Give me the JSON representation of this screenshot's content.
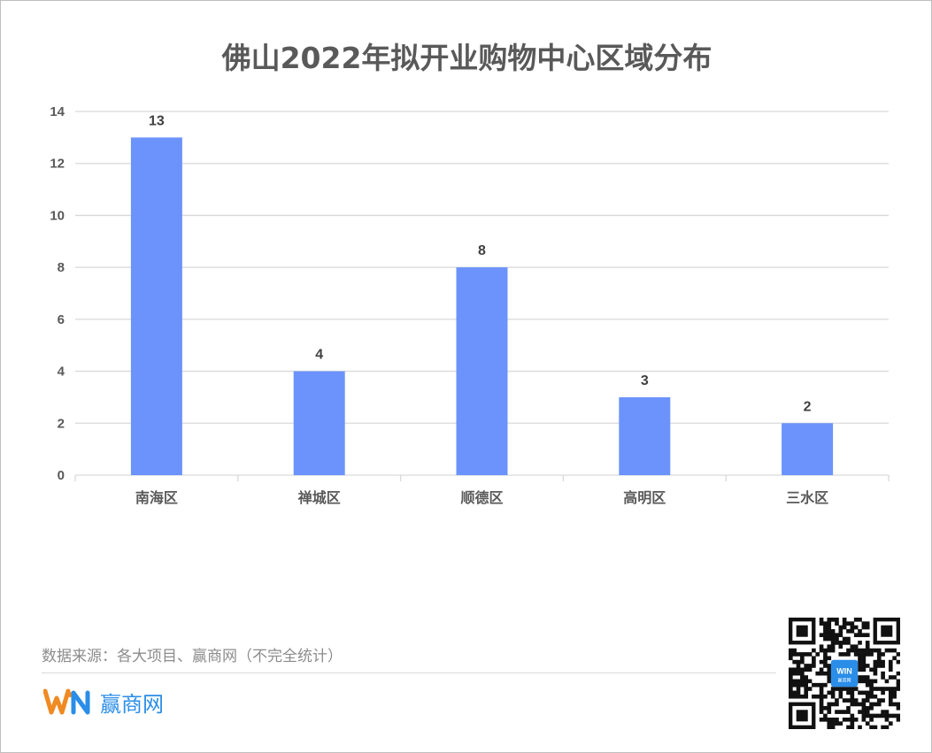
{
  "title": "佛山2022年拟开业购物中心区域分布",
  "source": "数据来源：各大项目、赢商网（不完全统计）",
  "brand": {
    "name": "赢商网",
    "logo_text": "WIN",
    "qr_center_text": "赢商网"
  },
  "colors": {
    "bar": "#6b93fb",
    "grid": "#d9d9d9",
    "text": "#595959",
    "brand_orange": "#f08a22",
    "brand_blue": "#2a8de8"
  },
  "chart_data": {
    "type": "bar",
    "title": "佛山2022年拟开业购物中心区域分布",
    "categories": [
      "南海区",
      "禅城区",
      "顺德区",
      "高明区",
      "三水区"
    ],
    "values": [
      13,
      4,
      8,
      3,
      2
    ],
    "ylim": [
      0,
      14
    ],
    "yticks": [
      0,
      2,
      4,
      6,
      8,
      10,
      12,
      14
    ],
    "grid": true,
    "legend": "none",
    "data_labels": true
  }
}
